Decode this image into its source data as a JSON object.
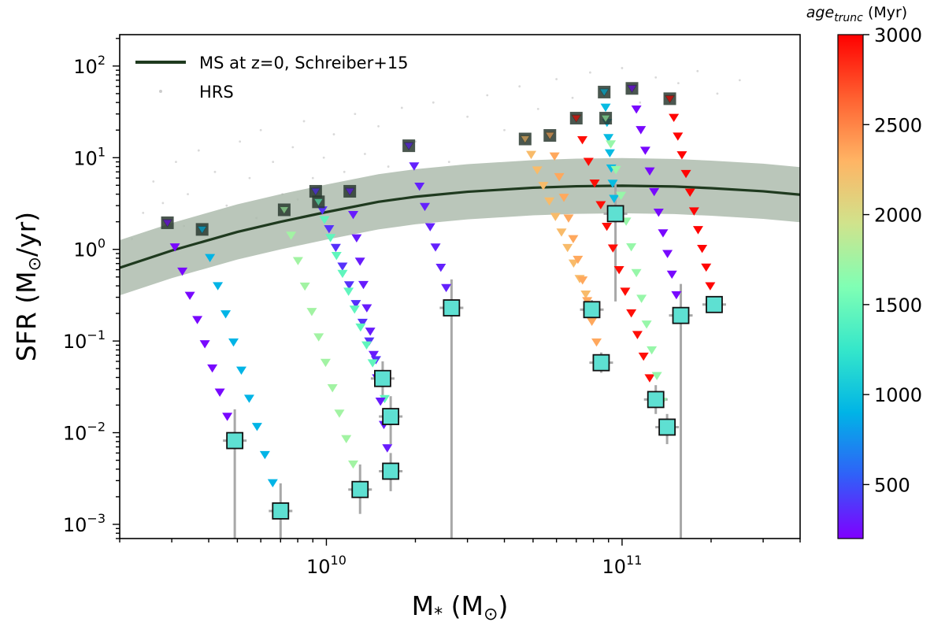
{
  "chart_data": {
    "type": "scatter",
    "xlabel": "M",
    "xlabel_sub": "*",
    "xlabel_unit": "(M",
    "xlabel_unit_close": ")",
    "ylabel_prefix": "SFR (M",
    "ylabel_suffix": "/yr)",
    "x_scale": "log",
    "y_scale": "log",
    "xlim": [
      2000000000.0,
      400000000000.0
    ],
    "ylim": [
      0.0007,
      220
    ],
    "x_major_ticks": [
      {
        "value": 10000000000.0,
        "base": "10",
        "exp": "10"
      },
      {
        "value": 100000000000.0,
        "base": "10",
        "exp": "11"
      }
    ],
    "y_major_ticks": [
      {
        "value": 0.001,
        "base": "10",
        "exp": "−3"
      },
      {
        "value": 0.01,
        "base": "10",
        "exp": "−2"
      },
      {
        "value": 0.1,
        "base": "10",
        "exp": "−1"
      },
      {
        "value": 1,
        "base": "10",
        "exp": "0"
      },
      {
        "value": 10,
        "base": "10",
        "exp": "1"
      },
      {
        "value": 100,
        "base": "10",
        "exp": "2"
      }
    ],
    "legend": {
      "position": "top-left",
      "entries": [
        {
          "label": "MS at z=0, Schreiber+15",
          "color": "#1f3a1f",
          "kind": "line"
        },
        {
          "label": "HRS",
          "color": "#cccccc",
          "kind": "dot"
        }
      ]
    },
    "main_sequence": {
      "name": "MS at z=0, Schreiber+15",
      "band_factor": 2.0,
      "color": "#1f3a1f",
      "band_color": "#a9b8a9",
      "x": [
        2000000000.0,
        3000000000.0,
        5000000000.0,
        7000000000.0,
        10000000000.0,
        15000000000.0,
        20000000000.0,
        30000000000.0,
        50000000000.0,
        70000000000.0,
        100000000000.0,
        150000000000.0,
        200000000000.0,
        300000000000.0,
        400000000000.0
      ],
      "y": [
        0.63,
        0.97,
        1.55,
        2.0,
        2.55,
        3.3,
        3.75,
        4.25,
        4.7,
        4.88,
        4.95,
        4.85,
        4.65,
        4.3,
        3.95
      ]
    },
    "colorbar": {
      "title_main": "age",
      "title_sub": "trunc",
      "title_unit": "(Myr)",
      "range": [
        200,
        3000
      ],
      "ticks": [
        {
          "value": 500,
          "label": "500"
        },
        {
          "value": 1000,
          "label": "1000"
        },
        {
          "value": 1500,
          "label": "1500"
        },
        {
          "value": 2000,
          "label": "2000"
        },
        {
          "value": 2500,
          "label": "2500"
        },
        {
          "value": 3000,
          "label": "3000"
        }
      ],
      "stops": [
        "#7f00ff",
        "#3060f8",
        "#00b4e6",
        "#35e7ca",
        "#80ffb4",
        "#d0e38c",
        "#ffb464",
        "#ff6030",
        "#ff0000"
      ]
    },
    "galaxies": [
      {
        "m_start": 2900000000.0,
        "sfr_start": 1.95,
        "m_end": 4900000000.0,
        "sfr_end": 0.0082,
        "age": 230,
        "n": 9,
        "err_lo": 0.0007,
        "err_hi": 0.018
      },
      {
        "m_start": 3800000000.0,
        "sfr_start": 1.65,
        "m_end": 7000000000.0,
        "sfr_end": 0.0014,
        "age": 900,
        "n": 10,
        "err_lo": 0.0007,
        "err_hi": 0.0028
      },
      {
        "m_start": 7200000000.0,
        "sfr_start": 2.7,
        "m_end": 13000000000.0,
        "sfr_end": 0.0024,
        "age": 1750,
        "n": 11,
        "err_lo": 0.0013,
        "err_hi": 0.0045
      },
      {
        "m_start": 9200000000.0,
        "sfr_start": 4.3,
        "m_end": 15500000000.0,
        "sfr_end": 0.039,
        "age": 380,
        "n": 10,
        "err_lo": 0.025,
        "err_hi": 0.06
      },
      {
        "m_start": 9400000000.0,
        "sfr_start": 3.3,
        "m_end": 16500000000.0,
        "sfr_end": 0.015,
        "age": 1450,
        "n": 12,
        "err_lo": 0.0075,
        "err_hi": 0.025
      },
      {
        "m_start": 12000000000.0,
        "sfr_start": 4.3,
        "m_end": 16500000000.0,
        "sfr_end": 0.0038,
        "age": 300,
        "n": 12,
        "err_lo": 0.0023,
        "err_hi": 0.006
      },
      {
        "m_start": 19000000000.0,
        "sfr_start": 13.5,
        "m_end": 26500000000.0,
        "sfr_end": 0.23,
        "age": 320,
        "n": 8,
        "err_lo": 0.0007,
        "err_hi": 0.47
      },
      {
        "m_start": 47000000000.0,
        "sfr_start": 16,
        "m_end": 79000000000.0,
        "sfr_end": 0.22,
        "age": 2250,
        "n": 11,
        "err_lo": 0.17,
        "err_hi": 0.28
      },
      {
        "m_start": 57000000000.0,
        "sfr_start": 17.5,
        "m_end": 85000000000.0,
        "sfr_end": 0.058,
        "age": 2350,
        "n": 11,
        "err_lo": 0.045,
        "err_hi": 0.075
      },
      {
        "m_start": 70000000000.0,
        "sfr_start": 27,
        "m_end": 130000000000.0,
        "sfr_end": 0.023,
        "age": 2950,
        "n": 13,
        "err_lo": 0.016,
        "err_hi": 0.033
      },
      {
        "m_start": 87000000000.0,
        "sfr_start": 52,
        "m_end": 95000000000.0,
        "sfr_end": 2.45,
        "age": 950,
        "n": 8,
        "err_lo": 0.27,
        "err_hi": 5.2
      },
      {
        "m_start": 88000000000.0,
        "sfr_start": 27,
        "m_end": 142000000000.0,
        "sfr_end": 0.0115,
        "age": 1700,
        "n": 12,
        "err_lo": 0.0075,
        "err_hi": 0.016
      },
      {
        "m_start": 108000000000.0,
        "sfr_start": 57,
        "m_end": 158000000000.0,
        "sfr_end": 0.19,
        "age": 230,
        "n": 11,
        "err_lo": 0.0007,
        "err_hi": 0.42
      },
      {
        "m_start": 145000000000.0,
        "sfr_start": 44,
        "m_end": 205000000000.0,
        "sfr_end": 0.25,
        "age": 2980,
        "n": 11,
        "err_lo": 0.22,
        "err_hi": 0.29
      }
    ],
    "hrs_points": [
      [
        2400000000.0,
        2.5
      ],
      [
        2600000000.0,
        5.5
      ],
      [
        3100000000.0,
        9
      ],
      [
        3400000000.0,
        4
      ],
      [
        3700000000.0,
        12
      ],
      [
        4200000000.0,
        7
      ],
      [
        4600000000.0,
        3
      ],
      [
        5100000000.0,
        15
      ],
      [
        5500000000.0,
        6
      ],
      [
        6000000000.0,
        20
      ],
      [
        6600000000.0,
        9
      ],
      [
        7100000000.0,
        4
      ],
      [
        7700000000.0,
        13
      ],
      [
        8400000000.0,
        25
      ],
      [
        9000000000.0,
        6
      ],
      [
        9800000000.0,
        10
      ],
      [
        10600000000.0,
        18
      ],
      [
        11500000000.0,
        7
      ],
      [
        12500000000.0,
        30
      ],
      [
        13500000000.0,
        11
      ],
      [
        15000000000.0,
        22
      ],
      [
        16200000000.0,
        8
      ],
      [
        18000000000.0,
        35
      ],
      [
        20000000000.0,
        15
      ],
      [
        23000000000.0,
        40
      ],
      [
        26000000000.0,
        9
      ],
      [
        30000000000.0,
        28
      ],
      [
        35000000000.0,
        48
      ],
      [
        40000000000.0,
        20
      ],
      [
        45000000000.0,
        60
      ],
      [
        52000000000.0,
        34
      ],
      [
        60000000000.0,
        72
      ],
      [
        68000000000.0,
        45
      ],
      [
        78000000000.0,
        85
      ],
      [
        88000000000.0,
        55
      ],
      [
        100000000000.0,
        95
      ],
      [
        115000000000.0,
        40
      ],
      [
        130000000000.0,
        75
      ],
      [
        155000000000.0,
        65
      ],
      [
        180000000000.0,
        88
      ],
      [
        210000000000.0,
        50
      ],
      [
        250000000000.0,
        70
      ],
      [
        2200000000.0,
        1.3
      ],
      [
        2800000000.0,
        3.2
      ],
      [
        3300000000.0,
        1.8
      ],
      [
        5800000000.0,
        2.2
      ],
      [
        8000000000.0,
        3.5
      ],
      [
        12000000000.0,
        2.8
      ]
    ]
  }
}
